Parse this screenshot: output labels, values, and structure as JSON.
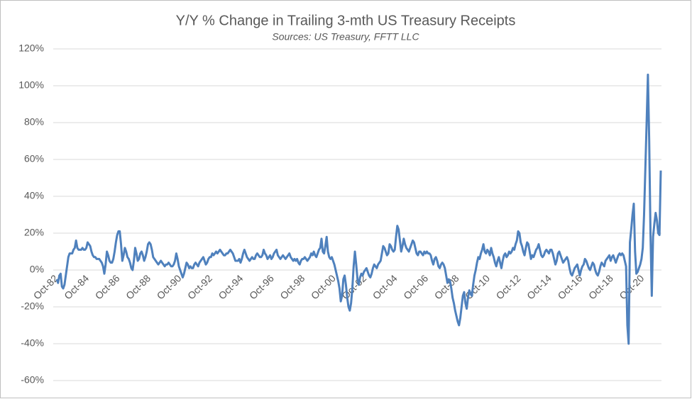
{
  "chart_data": {
    "type": "line",
    "title": "Y/Y % Change in Trailing 3-mth US Treasury Receipts",
    "subtitle": "Sources: US Treasury, FFTT LLC",
    "color": "#4f81bd",
    "grid": true,
    "ylim": [
      -60,
      120
    ],
    "yticks": [
      {
        "value": -60,
        "label": "-60%"
      },
      {
        "value": -40,
        "label": "-40%"
      },
      {
        "value": -20,
        "label": "-20%"
      },
      {
        "value": 0,
        "label": "0%"
      },
      {
        "value": 20,
        "label": "20%"
      },
      {
        "value": 40,
        "label": "40%"
      },
      {
        "value": 60,
        "label": "60%"
      },
      {
        "value": 80,
        "label": "80%"
      },
      {
        "value": 100,
        "label": "100%"
      },
      {
        "value": 120,
        "label": "120%"
      }
    ],
    "categories": [
      "Oct-82",
      null,
      null,
      null,
      null,
      null,
      null,
      null,
      null,
      null,
      null,
      null,
      null,
      null,
      null,
      null,
      null,
      null,
      null,
      null,
      null,
      null,
      null,
      null,
      "Oct-84",
      null,
      null,
      null,
      null,
      null,
      null,
      null,
      null,
      null,
      null,
      null,
      null,
      null,
      null,
      null,
      null,
      null,
      null,
      null,
      null,
      null,
      null,
      null,
      "Oct-86",
      null,
      null,
      null,
      null,
      null,
      null,
      null,
      null,
      null,
      null,
      null,
      null,
      null,
      null,
      null,
      null,
      null,
      null,
      null,
      null,
      null,
      null,
      null,
      "Oct-88",
      null,
      null,
      null,
      null,
      null,
      null,
      null,
      null,
      null,
      null,
      null,
      null,
      null,
      null,
      null,
      null,
      null,
      null,
      null,
      null,
      null,
      null,
      null,
      "Oct-90",
      null,
      null,
      null,
      null,
      null,
      null,
      null,
      null,
      null,
      null,
      null,
      null,
      null,
      null,
      null,
      null,
      null,
      null,
      null,
      null,
      null,
      null,
      null,
      "Oct-92",
      null,
      null,
      null,
      null,
      null,
      null,
      null,
      null,
      null,
      null,
      null,
      null,
      null,
      null,
      null,
      null,
      null,
      null,
      null,
      null,
      null,
      null,
      null,
      "Oct-94",
      null,
      null,
      null,
      null,
      null,
      null,
      null,
      null,
      null,
      null,
      null,
      null,
      null,
      null,
      null,
      null,
      null,
      null,
      null,
      null,
      null,
      null,
      null,
      "Oct-96",
      null,
      null,
      null,
      null,
      null,
      null,
      null,
      null,
      null,
      null,
      null,
      null,
      null,
      null,
      null,
      null,
      null,
      null,
      null,
      null,
      null,
      null,
      null,
      "Oct-98",
      null,
      null,
      null,
      null,
      null,
      null,
      null,
      null,
      null,
      null,
      null,
      null,
      null,
      null,
      null,
      null,
      null,
      null,
      null,
      null,
      null,
      null,
      null,
      "Oct-00",
      null,
      null,
      null,
      null,
      null,
      null,
      null,
      null,
      null,
      null,
      null,
      null,
      null,
      null,
      null,
      null,
      null,
      null,
      null,
      null,
      null,
      null,
      null,
      "Oct-02",
      null,
      null,
      null,
      null,
      null,
      null,
      null,
      null,
      null,
      null,
      null,
      null,
      null,
      null,
      null,
      null,
      null,
      null,
      null,
      null,
      null,
      null,
      null,
      "Oct-04",
      null,
      null,
      null,
      null,
      null,
      null,
      null,
      null,
      null,
      null,
      null,
      null,
      null,
      null,
      null,
      null,
      null,
      null,
      null,
      null,
      null,
      null,
      null,
      "Oct-06",
      null,
      null,
      null,
      null,
      null,
      null,
      null,
      null,
      null,
      null,
      null,
      null,
      null,
      null,
      null,
      null,
      null,
      null,
      null,
      null,
      null,
      null,
      null,
      "Oct-08",
      null,
      null,
      null,
      null,
      null,
      null,
      null,
      null,
      null,
      null,
      null,
      null,
      null,
      null,
      null,
      null,
      null,
      null,
      null,
      null,
      null,
      null,
      null,
      "Oct-10",
      null,
      null,
      null,
      null,
      null,
      null,
      null,
      null,
      null,
      null,
      null,
      null,
      null,
      null,
      null,
      null,
      null,
      null,
      null,
      null,
      null,
      null,
      null,
      "Oct-12",
      null,
      null,
      null,
      null,
      null,
      null,
      null,
      null,
      null,
      null,
      null,
      null,
      null,
      null,
      null,
      null,
      null,
      null,
      null,
      null,
      null,
      null,
      null,
      "Oct-14",
      null,
      null,
      null,
      null,
      null,
      null,
      null,
      null,
      null,
      null,
      null,
      null,
      null,
      null,
      null,
      null,
      null,
      null,
      null,
      null,
      null,
      null,
      null,
      "Oct-16",
      null,
      null,
      null,
      null,
      null,
      null,
      null,
      null,
      null,
      null,
      null,
      null,
      null,
      null,
      null,
      null,
      null,
      null,
      null,
      null,
      null,
      null,
      null,
      "Oct-18",
      null,
      null,
      null,
      null,
      null,
      null,
      null,
      null,
      null,
      null,
      null,
      null,
      null,
      null,
      null,
      null,
      null,
      null,
      null,
      null,
      null,
      null,
      null,
      "Oct-20",
      null,
      null,
      null,
      null,
      null,
      null,
      null,
      null,
      null,
      null,
      null,
      null,
      null,
      null
    ],
    "values": [
      -5,
      -7,
      -3,
      -2,
      -9,
      -10,
      -8,
      -3,
      2,
      7,
      9,
      9,
      9,
      11,
      12,
      16,
      12,
      11,
      11,
      11,
      12,
      11,
      11,
      12,
      15,
      14,
      13,
      10,
      8,
      7,
      7,
      6,
      6,
      6,
      5,
      4,
      2,
      -2,
      3,
      10,
      8,
      5,
      4,
      4,
      6,
      10,
      15,
      19,
      21,
      21,
      14,
      5,
      8,
      12,
      10,
      7,
      6,
      4,
      1,
      0,
      5,
      12,
      9,
      5,
      6,
      9,
      10,
      8,
      5,
      7,
      10,
      14,
      15,
      14,
      11,
      7,
      6,
      5,
      4,
      3,
      4,
      5,
      4,
      3,
      2,
      3,
      3,
      4,
      3,
      2,
      2,
      3,
      5,
      9,
      6,
      2,
      0,
      -2,
      -4,
      -2,
      1,
      4,
      3,
      1,
      2,
      1,
      1,
      3,
      4,
      3,
      2,
      4,
      5,
      6,
      7,
      5,
      3,
      4,
      6,
      7,
      7,
      9,
      8,
      9,
      10,
      9,
      10,
      11,
      10,
      9,
      8,
      8,
      9,
      9,
      10,
      11,
      10,
      9,
      7,
      5,
      5,
      5,
      6,
      4,
      6,
      9,
      11,
      9,
      7,
      6,
      5,
      6,
      7,
      6,
      6,
      8,
      9,
      8,
      7,
      7,
      8,
      11,
      9,
      8,
      6,
      7,
      8,
      6,
      7,
      9,
      10,
      11,
      8,
      7,
      6,
      7,
      8,
      7,
      6,
      7,
      8,
      9,
      7,
      6,
      5,
      6,
      5,
      6,
      4,
      3,
      5,
      6,
      6,
      7,
      6,
      5,
      6,
      7,
      9,
      8,
      10,
      8,
      7,
      9,
      11,
      12,
      17,
      10,
      9,
      13,
      18,
      10,
      7,
      6,
      7,
      5,
      3,
      0,
      -3,
      -6,
      -10,
      -17,
      -14,
      -5,
      -3,
      -8,
      -15,
      -20,
      -22,
      -18,
      -10,
      2,
      10,
      3,
      -5,
      -8,
      -4,
      -2,
      -3,
      -1,
      0,
      1,
      -1,
      -3,
      -4,
      -2,
      1,
      3,
      2,
      1,
      3,
      4,
      5,
      9,
      13,
      12,
      10,
      8,
      9,
      14,
      13,
      11,
      10,
      11,
      18,
      24,
      22,
      16,
      10,
      13,
      17,
      14,
      12,
      11,
      10,
      12,
      14,
      16,
      15,
      12,
      9,
      8,
      10,
      10,
      9,
      8,
      10,
      9,
      10,
      9,
      9,
      8,
      5,
      3,
      6,
      7,
      5,
      2,
      1,
      3,
      4,
      3,
      1,
      -3,
      -7,
      -5,
      -6,
      -10,
      -15,
      -18,
      -22,
      -25,
      -28,
      -30,
      -26,
      -20,
      -14,
      -12,
      -18,
      -21,
      -15,
      -11,
      -13,
      -14,
      -8,
      -3,
      0,
      4,
      7,
      6,
      9,
      11,
      14,
      10,
      9,
      11,
      10,
      8,
      12,
      9,
      7,
      4,
      2,
      5,
      7,
      4,
      1,
      5,
      8,
      9,
      7,
      8,
      10,
      9,
      10,
      12,
      11,
      14,
      16,
      21,
      20,
      15,
      13,
      10,
      8,
      12,
      15,
      14,
      10,
      6,
      8,
      7,
      9,
      11,
      12,
      14,
      11,
      8,
      7,
      8,
      10,
      11,
      10,
      9,
      11,
      11,
      9,
      6,
      3,
      5,
      9,
      10,
      8,
      6,
      4,
      5,
      6,
      7,
      5,
      1,
      -2,
      -3,
      -1,
      1,
      2,
      3,
      0,
      -3,
      0,
      2,
      3,
      6,
      5,
      3,
      1,
      0,
      2,
      4,
      3,
      0,
      -2,
      -3,
      -1,
      2,
      4,
      3,
      2,
      5,
      6,
      7,
      8,
      5,
      7,
      8,
      6,
      4,
      6,
      8,
      9,
      8,
      9,
      8,
      5,
      2,
      -30,
      -40,
      15,
      22,
      30,
      36,
      10,
      -2,
      -1,
      1,
      3,
      6,
      12,
      30,
      55,
      80,
      106,
      70,
      20,
      -14,
      18,
      25,
      31,
      27,
      20,
      19,
      54
    ]
  }
}
